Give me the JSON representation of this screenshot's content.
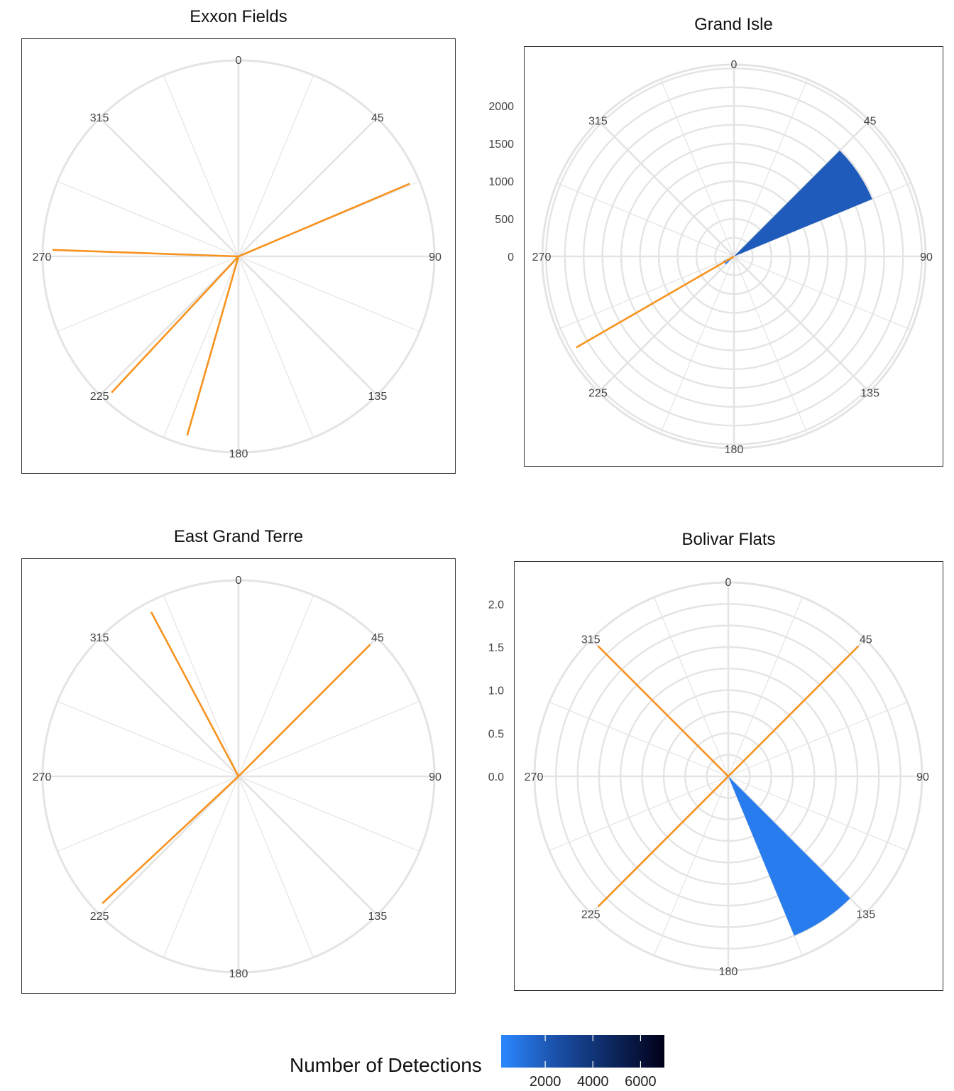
{
  "colors": {
    "orange": "#f7931e",
    "grid": "#e4e4e4",
    "low": "#2b87ff",
    "high": "#000019",
    "mid": "#1a4ea5"
  },
  "chart_data": [
    {
      "type": "polar",
      "title": "Exxon Fields",
      "angle_ticks": [
        "0",
        "45",
        "90",
        "135",
        "180",
        "225",
        "270",
        "315"
      ],
      "radial_ticks": [],
      "rmax": 1,
      "bars": [],
      "lines": [
        {
          "angle": 67
        },
        {
          "angle": 272
        },
        {
          "angle": 223
        },
        {
          "angle": 196
        }
      ]
    },
    {
      "type": "polar",
      "title": "Grand Isle",
      "angle_ticks": [
        "0",
        "45",
        "90",
        "135",
        "180",
        "225",
        "270",
        "315"
      ],
      "radial_ticks": [
        "0",
        "500",
        "1000",
        "1500",
        "2000"
      ],
      "radial_tick_values": [
        0,
        500,
        1000,
        1500,
        2000
      ],
      "rmax": 2550,
      "bars": [
        {
          "start": 45,
          "end": 67.5,
          "value": 1990,
          "detections": 1990
        },
        {
          "start": 225,
          "end": 247.5,
          "value": 150,
          "detections": 150
        }
      ],
      "lines": [
        {
          "angle": 240
        }
      ]
    },
    {
      "type": "polar",
      "title": "East Grand Terre",
      "angle_ticks": [
        "0",
        "45",
        "90",
        "135",
        "180",
        "225",
        "270",
        "315"
      ],
      "radial_ticks": [],
      "rmax": 1,
      "bars": [],
      "lines": [
        {
          "angle": 45
        },
        {
          "angle": 332
        },
        {
          "angle": 227
        }
      ]
    },
    {
      "type": "polar",
      "title": "Bolivar Flats",
      "angle_ticks": [
        "0",
        "45",
        "90",
        "135",
        "180",
        "225",
        "270",
        "315"
      ],
      "radial_ticks": [
        "0.0",
        "0.5",
        "1.0",
        "1.5",
        "2.0"
      ],
      "radial_tick_values": [
        0,
        0.5,
        1.0,
        1.5,
        2.0
      ],
      "rmax": 2.25,
      "bars": [
        {
          "start": 135,
          "end": 157.5,
          "value": 2,
          "detections": 600
        }
      ],
      "lines": [
        {
          "angle": 45
        },
        {
          "angle": 315
        },
        {
          "angle": 225
        }
      ]
    }
  ],
  "legend": {
    "title": "Number of Detections",
    "ticks": [
      "2000",
      "4000",
      "6000"
    ],
    "tick_values": [
      2000,
      4000,
      6000
    ],
    "range": [
      150,
      7000
    ]
  }
}
